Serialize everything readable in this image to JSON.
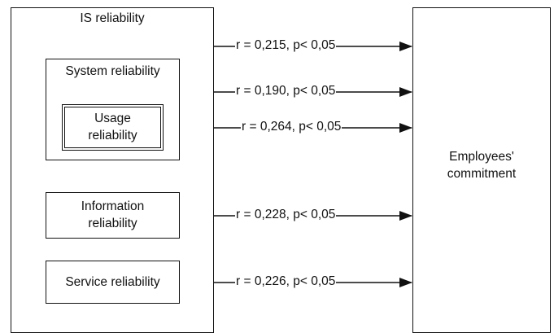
{
  "is_group": {
    "label": "IS reliability"
  },
  "system_group": {
    "label": "System reliability"
  },
  "usage": {
    "label": "Usage\nreliability"
  },
  "information": {
    "label": "Information\nreliability"
  },
  "service": {
    "label": "Service reliability"
  },
  "outcome": {
    "label": "Employees'\ncommitment"
  },
  "relations": [
    {
      "from": "IS reliability",
      "to": "Employees' commitment",
      "label": "r = 0,215, p< 0,05"
    },
    {
      "from": "System reliability",
      "to": "Employees' commitment",
      "label": "r = 0,190, p< 0,05"
    },
    {
      "from": "Usage reliability",
      "to": "Employees' commitment",
      "label": "r = 0,264, p< 0,05"
    },
    {
      "from": "Information reliability",
      "to": "Employees' commitment",
      "label": "r = 0,228, p< 0,05"
    },
    {
      "from": "Service reliability",
      "to": "Employees' commitment",
      "label": "r = 0,226, p< 0,05"
    }
  ]
}
